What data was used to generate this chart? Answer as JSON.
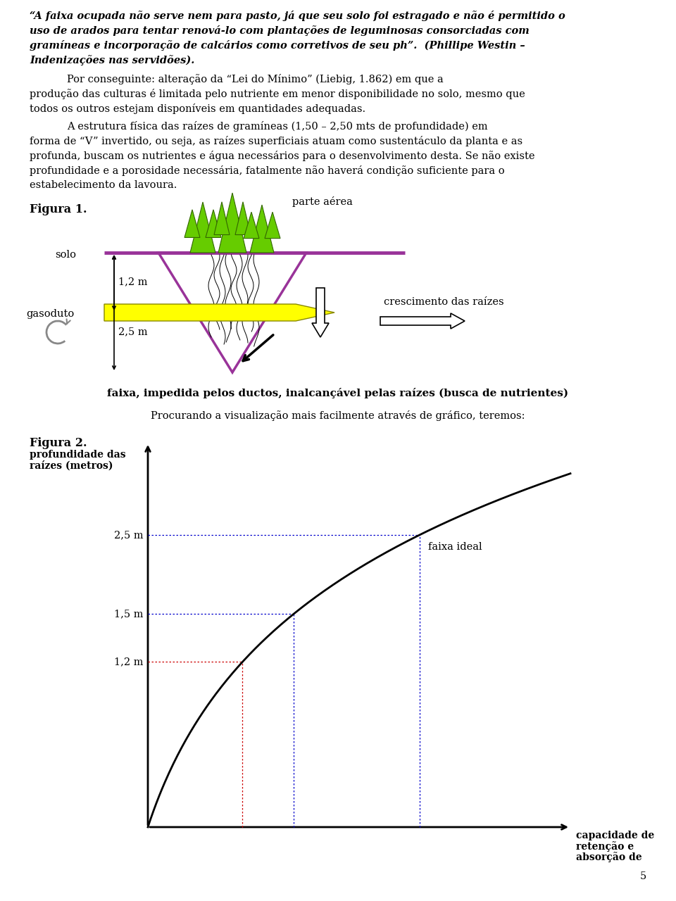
{
  "page_bg": "#ffffff",
  "text_color": "#000000",
  "figura1_label": "Figura 1.",
  "label_solo": "solo",
  "label_gasoduto": "gasoduto",
  "label_parte_aerea": "parte aérea",
  "label_crescimento": "crescimento das raízes",
  "label_1_2m": "1,2 m",
  "label_2_5m": "2,5 m",
  "caption_fig1": "faixa, impedida pelos ductos, inalcançável pelas raízes (busca de nutrientes)",
  "transition_text": "Procurando a visualização mais facilmente através de gráfico, teremos:",
  "figura2_label": "Figura 2.",
  "ylabel_fig2_line1": "profundidade das",
  "ylabel_fig2_line2": "raízes (metros)",
  "y_tick_1": "1,2 m",
  "y_tick_2": "1,5 m",
  "y_tick_3": "2,5 m",
  "label_faixa_ideal": "faixa ideal",
  "xlabel_fig2_line1": "capacidade de",
  "xlabel_fig2_line2": "retenção e",
  "xlabel_fig2_line3": "absorção de",
  "page_number": "5",
  "purple_color": "#993399",
  "yellow_color": "#ffff00",
  "green_color": "#66cc00",
  "red_dotted": "#cc0000",
  "blue_dotted": "#0000cc"
}
